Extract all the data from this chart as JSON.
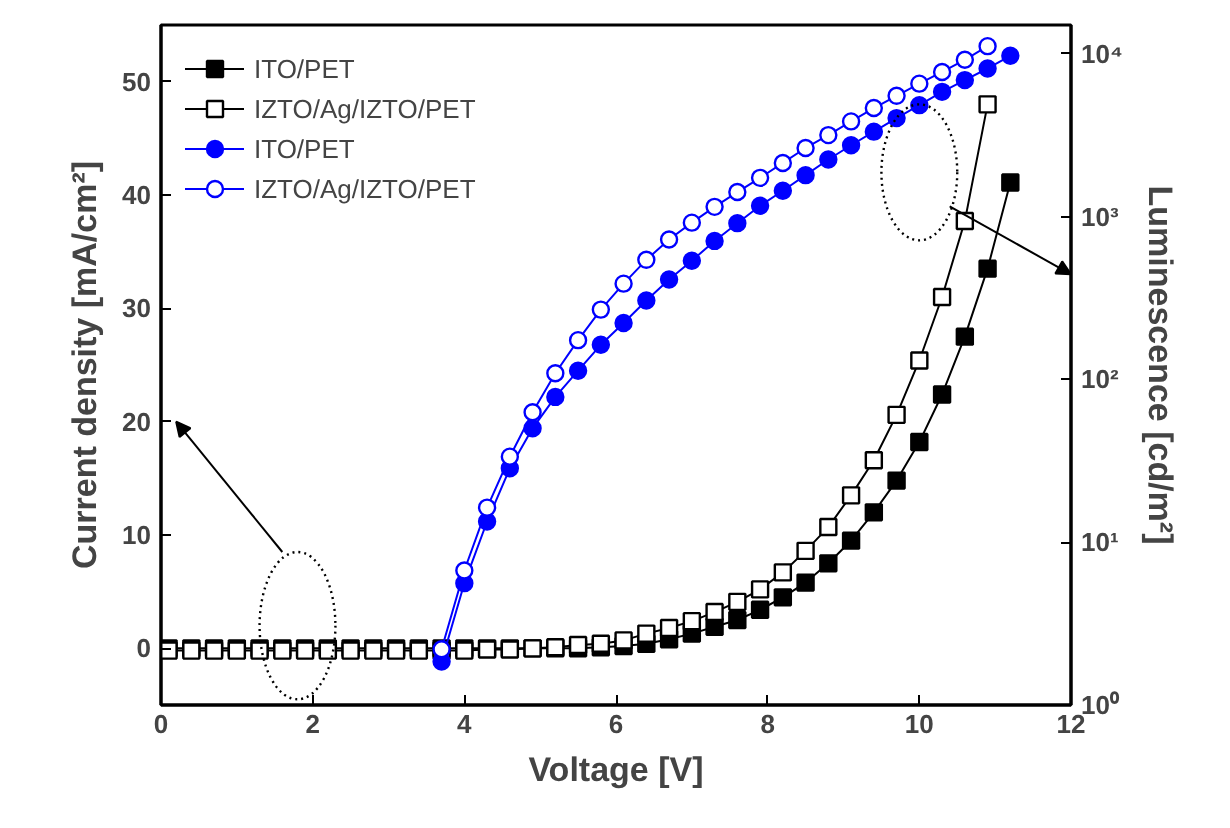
{
  "chart_data": {
    "type": "line",
    "xlabel": "Voltage [V]",
    "ylabel": "Current density [mA/cm²]",
    "y2label": "Luminescence [cd/m²]",
    "xlim": [
      0,
      12
    ],
    "xticks": [
      0,
      2,
      4,
      6,
      8,
      10,
      12
    ],
    "ylim": [
      -5,
      55
    ],
    "yticks": [
      0,
      10,
      20,
      30,
      40,
      50
    ],
    "y2lim": [
      1,
      15000
    ],
    "y2ticks": [
      {
        "value": 1,
        "label": "10⁰"
      },
      {
        "value": 10,
        "label": "10¹"
      },
      {
        "value": 100,
        "label": "10²"
      },
      {
        "value": 1000,
        "label": "10³"
      },
      {
        "value": 10000,
        "label": "10⁴"
      }
    ],
    "log": "y2",
    "grid": false,
    "legend": "top left",
    "line_style": "solid",
    "series": [
      {
        "name": "ITO/PET",
        "color": "#000000",
        "marker": "square",
        "x": [
          0.1,
          0.4,
          0.7,
          1.0,
          1.3,
          1.6,
          1.9,
          2.2,
          2.5,
          2.8,
          3.1,
          3.4,
          3.7,
          4.0,
          4.3,
          4.6,
          4.9,
          5.2,
          5.5,
          5.8,
          6.1,
          6.4,
          6.7,
          7.0,
          7.3,
          7.6,
          7.9,
          8.2,
          8.5,
          8.8,
          9.1,
          9.4,
          9.7,
          10.0,
          10.3,
          10.6,
          10.9,
          11.2
        ],
        "values": [
          0,
          0,
          0,
          0,
          0,
          0,
          0,
          0,
          0,
          0,
          0,
          0,
          0,
          0,
          0,
          0,
          0,
          0,
          0,
          0.1,
          0.2,
          0.4,
          0.8,
          1.3,
          1.9,
          2.5,
          3.4,
          4.5,
          5.8,
          7.5,
          9.5,
          12.0,
          14.8,
          18.2,
          22.4,
          27.5,
          33.5,
          41.1
        ]
      },
      {
        "name": "IZTO/Ag/IZTO/PET",
        "color": "#000000",
        "marker": "square",
        "x": [
          0.1,
          0.4,
          0.7,
          1.0,
          1.3,
          1.6,
          1.9,
          2.2,
          2.5,
          2.8,
          3.1,
          3.4,
          3.7,
          4.0,
          4.3,
          4.6,
          4.9,
          5.2,
          5.5,
          5.8,
          6.1,
          6.4,
          6.7,
          7.0,
          7.3,
          7.6,
          7.9,
          8.2,
          8.5,
          8.8,
          9.1,
          9.4,
          9.7,
          10.0,
          10.3,
          10.6,
          10.9
        ],
        "values": [
          -0.2,
          -0.2,
          -0.2,
          -0.2,
          -0.2,
          -0.2,
          -0.2,
          -0.2,
          -0.2,
          -0.2,
          -0.2,
          -0.2,
          -0.2,
          -0.2,
          -0.1,
          -0.1,
          0,
          0.1,
          0.3,
          0.4,
          0.7,
          1.3,
          1.8,
          2.4,
          3.2,
          4.1,
          5.2,
          6.7,
          8.6,
          10.7,
          13.5,
          16.6,
          20.6,
          25.4,
          31.0,
          37.7,
          48.0
        ]
      },
      {
        "name": "ITO/PET",
        "color": "#0000ff",
        "marker": "circle",
        "axis": "y2",
        "x": [
          3.7,
          4.0,
          4.3,
          4.6,
          4.9,
          5.2,
          5.5,
          5.8,
          6.1,
          6.4,
          6.7,
          7.0,
          7.3,
          7.6,
          7.9,
          8.2,
          8.5,
          8.8,
          9.1,
          9.4,
          9.7,
          10.0,
          10.3,
          10.6,
          10.9,
          11.2
        ],
        "values": [
          1.85,
          5.6,
          13.4,
          28.4,
          50,
          78,
          113,
          163,
          222,
          305,
          410,
          535,
          708,
          910,
          1165,
          1440,
          1795,
          2240,
          2740,
          3320,
          4020,
          4830,
          5830,
          6880,
          8110,
          9710
        ]
      },
      {
        "name": "IZTO/Ag/IZTO/PET",
        "color": "#0000ff",
        "marker": "circle",
        "axis": "y2",
        "x": [
          3.7,
          4.0,
          4.3,
          4.6,
          4.9,
          5.2,
          5.5,
          5.8,
          6.1,
          6.4,
          6.7,
          7.0,
          7.3,
          7.6,
          7.9,
          8.2,
          8.5,
          8.8,
          9.1,
          9.4,
          9.7,
          10.0,
          10.3,
          10.6,
          10.9
        ],
        "values": [
          2.2,
          6.7,
          16.3,
          33.5,
          62.8,
          109,
          174,
          268,
          387,
          542,
          723,
          917,
          1146,
          1413,
          1728,
          2133,
          2636,
          3162,
          3837,
          4634,
          5510,
          6546,
          7720,
          9170,
          11120
        ]
      }
    ]
  }
}
